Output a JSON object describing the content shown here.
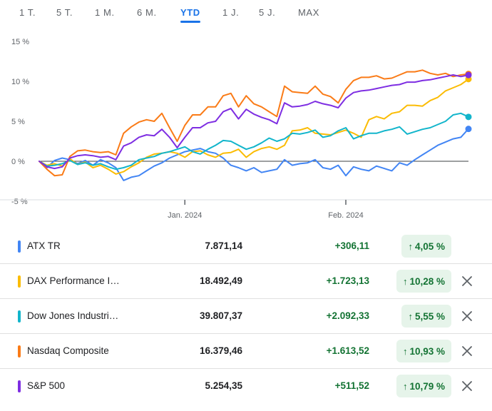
{
  "tabs": [
    {
      "label": "1 T.",
      "active": false
    },
    {
      "label": "5 T.",
      "active": false
    },
    {
      "label": "1 M.",
      "active": false
    },
    {
      "label": "6 M.",
      "active": false
    },
    {
      "label": "YTD",
      "active": true
    },
    {
      "label": "1 J.",
      "active": false
    },
    {
      "label": "5 J.",
      "active": false
    },
    {
      "label": "MAX",
      "active": false
    }
  ],
  "chart_data": {
    "type": "line",
    "y_unit": "%",
    "ylim": [
      -5,
      15
    ],
    "yticks": [
      "15 %",
      "10 %",
      "5 %",
      "0 %",
      "-5 %"
    ],
    "ytick_values": [
      15,
      10,
      5,
      0,
      -5
    ],
    "xticks": [
      {
        "label": "Jan. 2024",
        "index": 19
      },
      {
        "label": "Feb. 2024",
        "index": 40
      }
    ],
    "grid": false,
    "baseline": 0,
    "series": [
      {
        "name": "ATX TR",
        "color": "#4285f4",
        "values": [
          0,
          -0.8,
          0.1,
          0.4,
          0.2,
          -0.3,
          0.1,
          -0.5,
          0.2,
          -0.2,
          -0.8,
          -2.4,
          -2,
          -1.8,
          -1.2,
          -0.6,
          -0.2,
          0.4,
          0.8,
          1.2,
          1.4,
          1.6,
          1.2,
          1.0,
          0.4,
          -0.5,
          -0.8,
          -1.2,
          -0.8,
          -1.4,
          -1.2,
          -1.0,
          0.2,
          -0.5,
          -0.3,
          -0.2,
          0.2,
          -0.8,
          -1.0,
          -0.5,
          -1.8,
          -0.7,
          -1.0,
          -1.2,
          -0.6,
          -0.9,
          -1.2,
          -0.2,
          -0.5,
          0.2,
          0.8,
          1.4,
          2.0,
          2.4,
          2.8,
          3.0,
          4.05
        ]
      },
      {
        "name": "DAX Performance I…",
        "color": "#fbbc04",
        "values": [
          0,
          -0.5,
          -0.3,
          -0.6,
          0.3,
          -0.4,
          -0.1,
          -0.8,
          -0.5,
          -1.0,
          -1.6,
          -1.3,
          -0.7,
          -0.2,
          0.5,
          0.9,
          1.0,
          1.2,
          1.0,
          0.5,
          1.2,
          1.3,
          0.8,
          0.5,
          1.0,
          1.1,
          1.5,
          0.5,
          1.2,
          1.6,
          1.8,
          1.5,
          2.0,
          3.8,
          3.9,
          4.2,
          3.5,
          3.4,
          3.3,
          3.6,
          3.9,
          3.5,
          3.0,
          5.2,
          5.6,
          5.3,
          6.0,
          6.2,
          7.0,
          7.0,
          6.9,
          7.6,
          8.0,
          8.8,
          9.2,
          9.6,
          10.28
        ]
      },
      {
        "name": "Dow Jones Industri…",
        "color": "#12b5cb",
        "values": [
          0,
          -0.6,
          -0.5,
          -0.3,
          0.1,
          -0.4,
          -0.2,
          -0.5,
          -0.3,
          -0.7,
          -1.0,
          -0.8,
          -0.5,
          0.2,
          0.4,
          0.6,
          1.0,
          1.2,
          1.5,
          1.8,
          1.2,
          0.9,
          1.5,
          2.0,
          2.6,
          2.5,
          2.0,
          1.5,
          1.8,
          2.3,
          2.9,
          2.5,
          2.8,
          3.5,
          3.4,
          3.6,
          3.9,
          3.0,
          3.2,
          3.8,
          4.2,
          2.8,
          3.2,
          3.5,
          3.5,
          3.8,
          4.0,
          4.3,
          3.4,
          3.7,
          4.0,
          4.2,
          4.6,
          5.0,
          5.8,
          6.0,
          5.55
        ]
      },
      {
        "name": "Nasdaq Composite",
        "color": "#fa7b17",
        "values": [
          0,
          -1.0,
          -1.8,
          -1.7,
          0.6,
          1.3,
          1.4,
          1.2,
          1.1,
          1.2,
          0.8,
          3.5,
          4.3,
          4.9,
          5.2,
          5.0,
          6.0,
          4.2,
          2.5,
          4.5,
          5.8,
          5.8,
          6.8,
          6.8,
          8.2,
          8.5,
          6.8,
          8.2,
          7.2,
          6.8,
          6.2,
          5.6,
          9.4,
          8.7,
          8.6,
          8.5,
          9.4,
          8.4,
          8.1,
          7.3,
          9.0,
          10.1,
          10.5,
          10.5,
          10.7,
          10.3,
          10.4,
          10.8,
          11.2,
          11.2,
          11.4,
          11.0,
          10.8,
          11.0,
          10.6,
          10.8,
          10.93
        ]
      },
      {
        "name": "S&P 500",
        "color": "#7e2ee2",
        "values": [
          0,
          -0.7,
          -0.9,
          -0.7,
          0.4,
          0.7,
          0.8,
          0.7,
          0.5,
          0.6,
          0.2,
          1.9,
          2.3,
          3.0,
          3.3,
          3.2,
          4.0,
          3.0,
          1.7,
          3.0,
          4.2,
          4.2,
          4.8,
          5.0,
          6.2,
          6.6,
          5.3,
          6.5,
          5.9,
          5.5,
          5.2,
          4.7,
          7.3,
          6.8,
          6.9,
          7.1,
          7.5,
          7.2,
          7.0,
          6.7,
          7.9,
          8.6,
          8.8,
          8.9,
          9.1,
          9.3,
          9.5,
          9.6,
          9.9,
          9.9,
          10.1,
          10.2,
          10.4,
          10.6,
          10.8,
          10.6,
          10.79
        ]
      }
    ]
  },
  "rows": [
    {
      "name": "ATX TR",
      "color": "#4285f4",
      "price": "7.871,14",
      "delta": "+306,11",
      "pct": "4,05 %",
      "removable": false
    },
    {
      "name": "DAX Performance I…",
      "color": "#fbbc04",
      "price": "18.492,49",
      "delta": "+1.723,13",
      "pct": "10,28 %",
      "removable": true
    },
    {
      "name": "Dow Jones Industri…",
      "color": "#12b5cb",
      "price": "39.807,37",
      "delta": "+2.092,33",
      "pct": "5,55 %",
      "removable": true
    },
    {
      "name": "Nasdaq Composite",
      "color": "#fa7b17",
      "price": "16.379,46",
      "delta": "+1.613,52",
      "pct": "10,93 %",
      "removable": true
    },
    {
      "name": "S&P 500",
      "color": "#7e2ee2",
      "price": "5.254,35",
      "delta": "+511,52",
      "pct": "10,79 %",
      "removable": true
    }
  ],
  "icons": {
    "arrow": "arrow-up-icon",
    "remove": "close-icon"
  }
}
